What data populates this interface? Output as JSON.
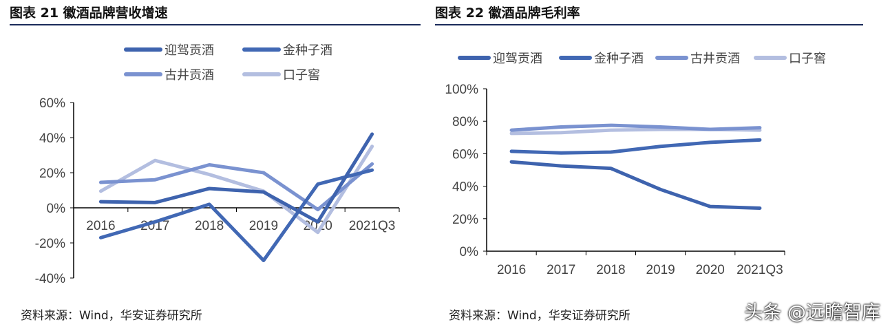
{
  "charts_meta": {
    "left_title": "图表 21 徽酒品牌营收增速",
    "right_title": "图表 22 徽酒品牌毛利率",
    "left_source": "资料来源：Wind，华安证券研究所",
    "right_source": "资料来源：Wind，华安证券研究所",
    "watermark": "头条 @远瞻智库"
  },
  "chart_data": [
    {
      "type": "line",
      "title": "图表 21 徽酒品牌营收增速",
      "categories": [
        "2016",
        "2017",
        "2018",
        "2019",
        "2020",
        "2021Q3"
      ],
      "ylim": [
        -40,
        60
      ],
      "yticks": [
        -40,
        -20,
        0,
        20,
        40,
        60
      ],
      "ytick_labels": [
        "-40%",
        "-20%",
        "0%",
        "20%",
        "40%",
        "60%"
      ],
      "legend": "top",
      "grid": false,
      "series": [
        {
          "name": "迎驾贡酒",
          "color": "#3e63ae",
          "values": [
            3.5,
            3,
            11,
            9,
            -8,
            42
          ]
        },
        {
          "name": "金种子酒",
          "color": "#4168b4",
          "values": [
            -17,
            -8,
            2,
            -30,
            13.5,
            21.5
          ]
        },
        {
          "name": "古井贡酒",
          "color": "#7a92d0",
          "values": [
            14.5,
            16,
            24.5,
            20,
            -1,
            25
          ]
        },
        {
          "name": "口子窖",
          "color": "#b3bee0",
          "values": [
            9.5,
            27,
            19,
            9.5,
            -14,
            35
          ]
        }
      ]
    },
    {
      "type": "line",
      "title": "图表 22 徽酒品牌毛利率",
      "categories": [
        "2016",
        "2017",
        "2018",
        "2019",
        "2020",
        "2021Q3"
      ],
      "ylim": [
        0,
        100
      ],
      "yticks": [
        0,
        20,
        40,
        60,
        80,
        100
      ],
      "ytick_labels": [
        "0%",
        "20%",
        "40%",
        "60%",
        "80%",
        "100%"
      ],
      "legend": "top",
      "grid": false,
      "series": [
        {
          "name": "迎驾贡酒",
          "color": "#3e63ae",
          "values": [
            55,
            52.5,
            51,
            38,
            27.5,
            26.5
          ]
        },
        {
          "name": "金种子酒",
          "color": "#4168b4",
          "values": [
            61.5,
            60.5,
            61,
            64.5,
            67,
            68.5
          ]
        },
        {
          "name": "古井贡酒",
          "color": "#7a92d0",
          "values": [
            74.5,
            76.5,
            77.5,
            76.5,
            75,
            76
          ]
        },
        {
          "name": "口子窖",
          "color": "#b3bee0",
          "values": [
            72.5,
            73,
            74.5,
            75,
            75,
            74.5
          ]
        }
      ]
    }
  ]
}
